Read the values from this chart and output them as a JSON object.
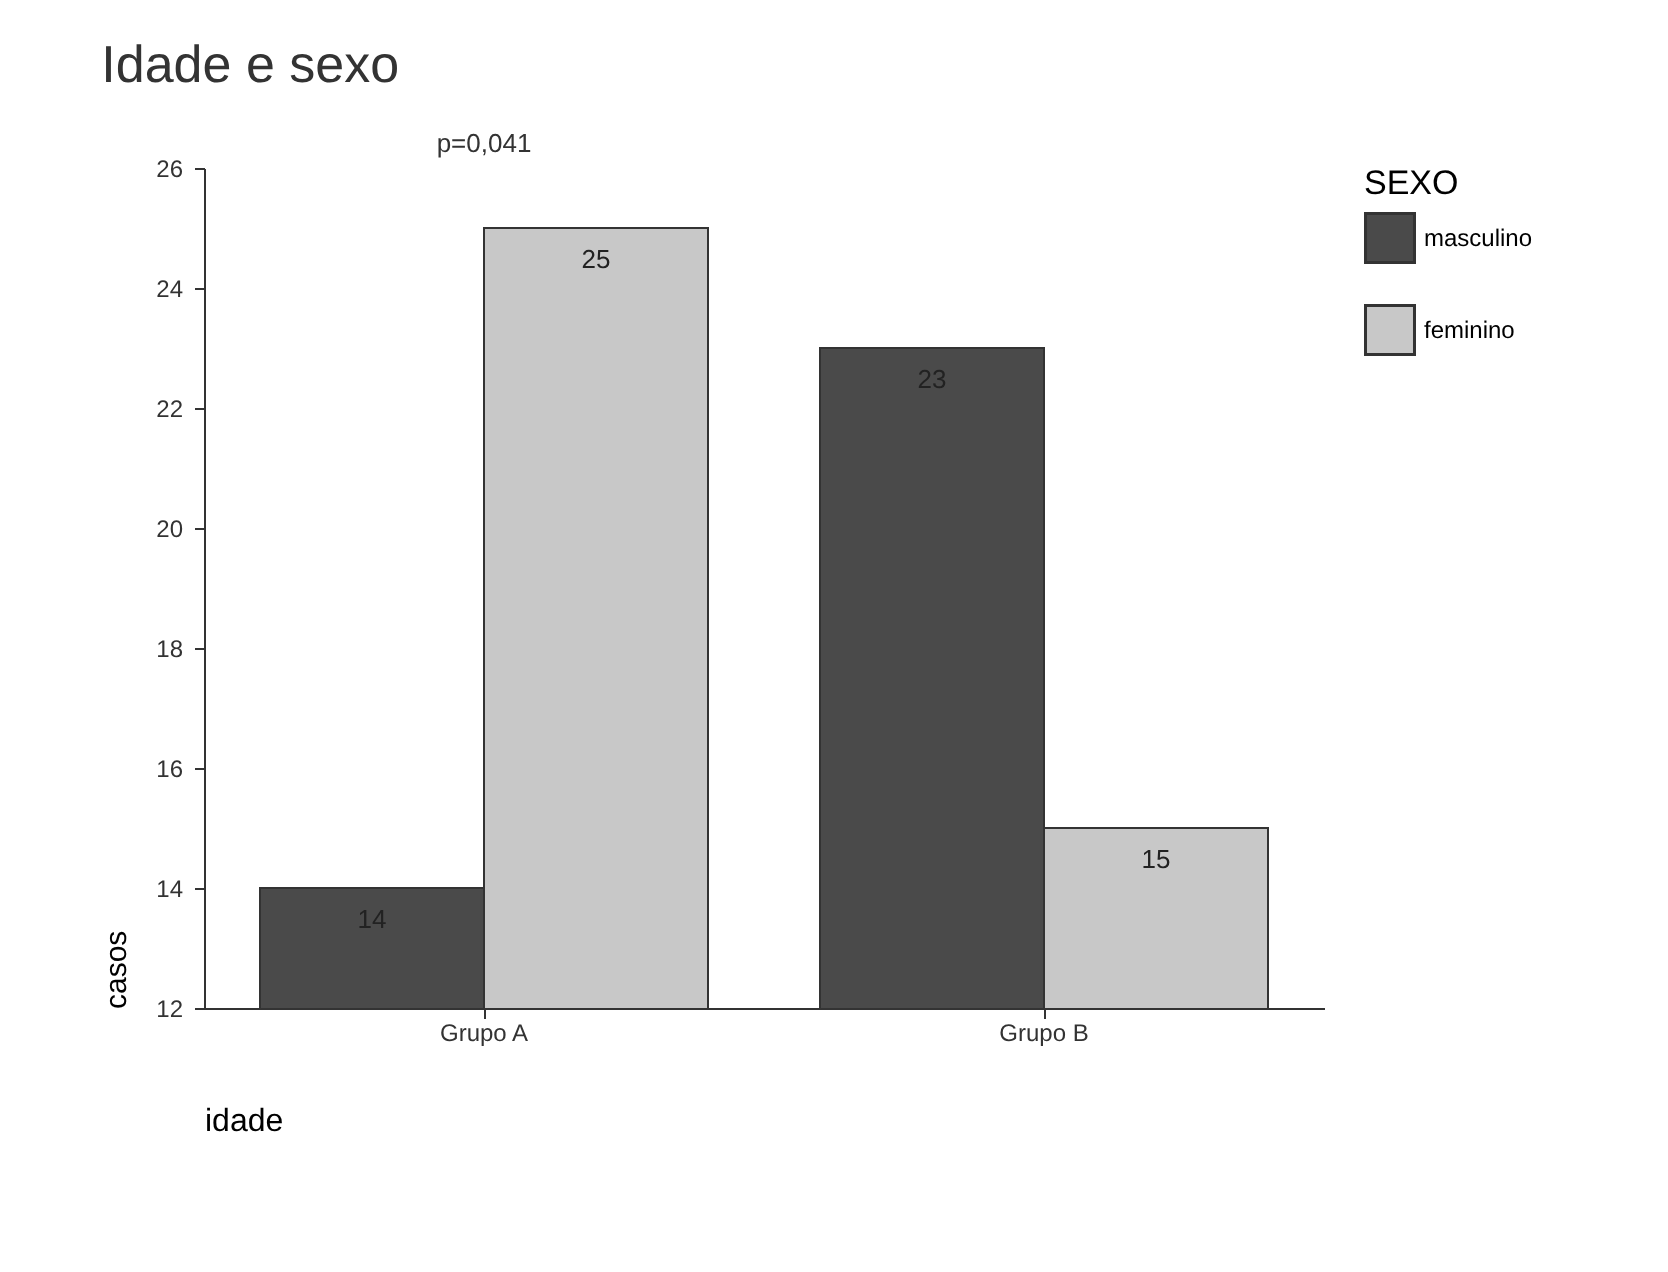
{
  "chart_data": {
    "type": "bar",
    "title": "Idade e sexo",
    "xlabel": "idade",
    "ylabel": "casos",
    "legend_title": "SEXO",
    "categories": [
      "Grupo A",
      "Grupo B"
    ],
    "series": [
      {
        "name": "masculino",
        "color": "#4a4a4a",
        "values": [
          14,
          23
        ]
      },
      {
        "name": "feminino",
        "color": "#c8c8c8",
        "values": [
          25,
          15
        ]
      }
    ],
    "ylim": [
      12,
      26
    ],
    "yticks": [
      12,
      14,
      16,
      18,
      20,
      22,
      24,
      26
    ],
    "grid": false,
    "legend": "right",
    "data_labels": true,
    "annotations": [
      "p=0,041"
    ]
  }
}
